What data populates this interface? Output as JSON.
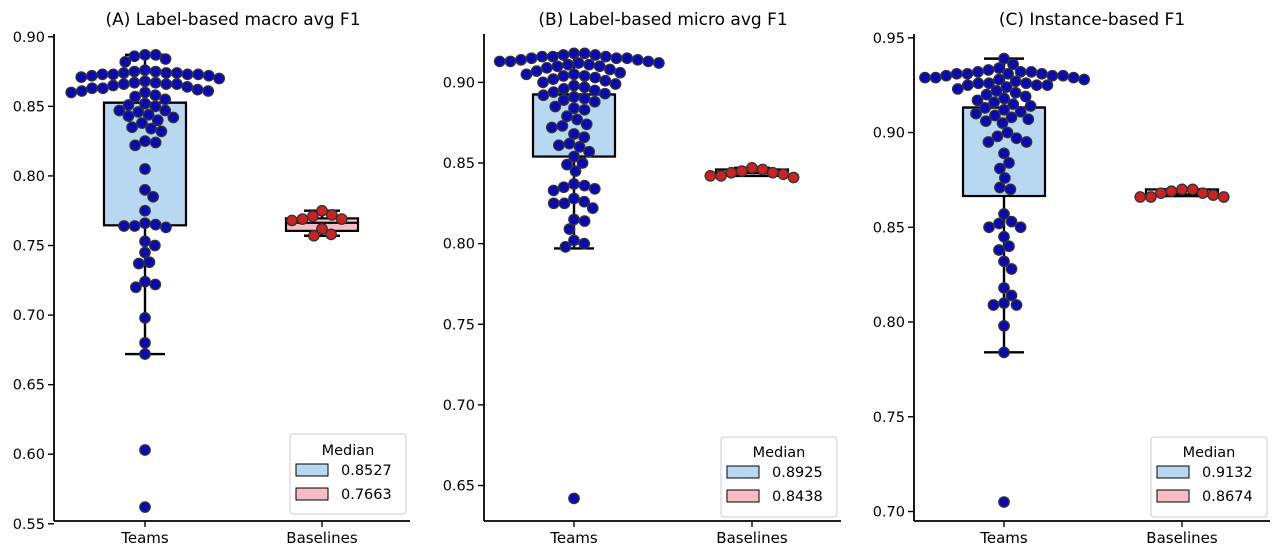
{
  "chart_data": [
    {
      "type": "box-swarm",
      "title": "(A) Label-based macro avg F1",
      "categories": [
        "Teams",
        "Baselines"
      ],
      "yticks": [
        0.55,
        0.6,
        0.65,
        0.7,
        0.75,
        0.8,
        0.85,
        0.9
      ],
      "ytick_labels": [
        "0.55",
        "0.60",
        "0.65",
        "0.70",
        "0.75",
        "0.80",
        "0.85",
        "0.90"
      ],
      "ylim": [
        0.552,
        0.902
      ],
      "legend": {
        "title": "Median",
        "placement": "lower-right",
        "entries": [
          {
            "label": "0.8527",
            "color": "#b8d8f2"
          },
          {
            "label": "0.7663",
            "color": "#f7bcc6"
          }
        ]
      },
      "boxes": [
        {
          "category": "Teams",
          "q1": 0.7645,
          "median": 0.8527,
          "q3": 0.8527,
          "whisker_low": 0.672,
          "whisker_high": 0.887,
          "fill": "#b8d8f2"
        },
        {
          "category": "Baselines",
          "q1": 0.7605,
          "median": 0.7663,
          "q3": 0.7695,
          "whisker_low": 0.757,
          "whisker_high": 0.775,
          "fill": "#f7bcc6"
        }
      ],
      "series": [
        {
          "name": "Teams",
          "color": "#0a0ab4",
          "values": [
            0.887,
            0.887,
            0.886,
            0.884,
            0.882,
            0.876,
            0.875,
            0.875,
            0.874,
            0.874,
            0.874,
            0.873,
            0.873,
            0.873,
            0.873,
            0.872,
            0.872,
            0.871,
            0.87,
            0.868,
            0.867,
            0.867,
            0.866,
            0.866,
            0.866,
            0.865,
            0.864,
            0.863,
            0.863,
            0.862,
            0.861,
            0.861,
            0.86,
            0.86,
            0.858,
            0.857,
            0.855,
            0.852,
            0.851,
            0.85,
            0.847,
            0.847,
            0.846,
            0.844,
            0.843,
            0.842,
            0.84,
            0.838,
            0.835,
            0.834,
            0.832,
            0.825,
            0.824,
            0.822,
            0.805,
            0.79,
            0.785,
            0.775,
            0.766,
            0.765,
            0.764,
            0.764,
            0.763,
            0.753,
            0.75,
            0.745,
            0.738,
            0.737,
            0.724,
            0.722,
            0.72,
            0.698,
            0.68,
            0.672,
            0.603,
            0.562
          ]
        },
        {
          "name": "Baselines",
          "color": "#cc2222",
          "values": [
            0.775,
            0.772,
            0.771,
            0.769,
            0.769,
            0.768,
            0.762,
            0.758,
            0.757
          ]
        }
      ]
    },
    {
      "type": "box-swarm",
      "title": "(B) Label-based micro avg F1",
      "categories": [
        "Teams",
        "Baselines"
      ],
      "yticks": [
        0.65,
        0.7,
        0.75,
        0.8,
        0.85,
        0.9
      ],
      "ytick_labels": [
        "0.65",
        "0.70",
        "0.75",
        "0.80",
        "0.85",
        "0.90"
      ],
      "ylim": [
        0.628,
        0.93
      ],
      "legend": {
        "title": "Median",
        "placement": "lower-right",
        "entries": [
          {
            "label": "0.8925",
            "color": "#b8d8f2"
          },
          {
            "label": "0.8438",
            "color": "#f7bcc6"
          }
        ]
      },
      "boxes": [
        {
          "category": "Teams",
          "q1": 0.854,
          "median": 0.8925,
          "q3": 0.8925,
          "whisker_low": 0.797,
          "whisker_high": 0.918,
          "fill": "#b8d8f2"
        },
        {
          "category": "Baselines",
          "q1": 0.842,
          "median": 0.8438,
          "q3": 0.846,
          "whisker_low": 0.842,
          "whisker_high": 0.847,
          "fill": "#f7bcc6"
        }
      ],
      "series": [
        {
          "name": "Teams",
          "color": "#0a0ab4",
          "values": [
            0.918,
            0.918,
            0.917,
            0.917,
            0.916,
            0.916,
            0.916,
            0.915,
            0.915,
            0.915,
            0.914,
            0.914,
            0.913,
            0.913,
            0.913,
            0.912,
            0.912,
            0.911,
            0.911,
            0.91,
            0.91,
            0.909,
            0.908,
            0.907,
            0.906,
            0.905,
            0.905,
            0.904,
            0.904,
            0.903,
            0.902,
            0.901,
            0.9,
            0.899,
            0.898,
            0.897,
            0.896,
            0.895,
            0.894,
            0.893,
            0.892,
            0.891,
            0.89,
            0.889,
            0.888,
            0.885,
            0.884,
            0.883,
            0.879,
            0.877,
            0.874,
            0.873,
            0.872,
            0.868,
            0.866,
            0.862,
            0.861,
            0.86,
            0.857,
            0.854,
            0.85,
            0.849,
            0.845,
            0.837,
            0.836,
            0.835,
            0.834,
            0.833,
            0.828,
            0.826,
            0.825,
            0.825,
            0.822,
            0.815,
            0.814,
            0.809,
            0.802,
            0.8,
            0.798,
            0.642
          ]
        },
        {
          "name": "Baselines",
          "color": "#cc2222",
          "values": [
            0.847,
            0.846,
            0.845,
            0.844,
            0.844,
            0.843,
            0.842,
            0.842,
            0.841
          ]
        }
      ]
    },
    {
      "type": "box-swarm",
      "title": "(C) Instance-based F1",
      "categories": [
        "Teams",
        "Baselines"
      ],
      "yticks": [
        0.7,
        0.75,
        0.8,
        0.85,
        0.9,
        0.95
      ],
      "ytick_labels": [
        "0.70",
        "0.75",
        "0.80",
        "0.85",
        "0.90",
        "0.95"
      ],
      "ylim": [
        0.695,
        0.952
      ],
      "legend": {
        "title": "Median",
        "placement": "lower-right",
        "entries": [
          {
            "label": "0.9132",
            "color": "#b8d8f2"
          },
          {
            "label": "0.8674",
            "color": "#f7bcc6"
          }
        ]
      },
      "boxes": [
        {
          "category": "Teams",
          "q1": 0.8665,
          "median": 0.9132,
          "q3": 0.9132,
          "whisker_low": 0.784,
          "whisker_high": 0.939,
          "fill": "#b8d8f2"
        },
        {
          "category": "Baselines",
          "q1": 0.8665,
          "median": 0.8674,
          "q3": 0.87,
          "whisker_low": 0.8665,
          "whisker_high": 0.87,
          "fill": "#f7bcc6"
        }
      ],
      "series": [
        {
          "name": "Teams",
          "color": "#0a0ab4",
          "values": [
            0.939,
            0.936,
            0.934,
            0.933,
            0.932,
            0.932,
            0.932,
            0.931,
            0.931,
            0.931,
            0.931,
            0.93,
            0.93,
            0.93,
            0.929,
            0.929,
            0.929,
            0.928,
            0.928,
            0.927,
            0.926,
            0.926,
            0.926,
            0.925,
            0.925,
            0.925,
            0.924,
            0.923,
            0.922,
            0.921,
            0.92,
            0.919,
            0.918,
            0.917,
            0.916,
            0.915,
            0.914,
            0.913,
            0.912,
            0.911,
            0.91,
            0.909,
            0.908,
            0.907,
            0.906,
            0.905,
            0.9,
            0.898,
            0.897,
            0.895,
            0.895,
            0.889,
            0.884,
            0.881,
            0.876,
            0.871,
            0.87,
            0.857,
            0.853,
            0.852,
            0.85,
            0.85,
            0.845,
            0.84,
            0.838,
            0.832,
            0.828,
            0.818,
            0.814,
            0.81,
            0.809,
            0.809,
            0.798,
            0.784,
            0.705
          ]
        },
        {
          "name": "Baselines",
          "color": "#cc2222",
          "values": [
            0.87,
            0.87,
            0.869,
            0.868,
            0.868,
            0.867,
            0.866,
            0.866,
            0.866
          ]
        }
      ]
    }
  ]
}
